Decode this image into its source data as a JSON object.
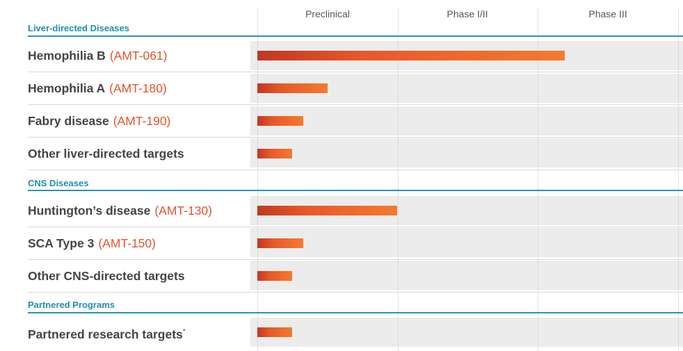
{
  "chart_data": {
    "type": "bar",
    "orientation": "horizontal",
    "phases": [
      "Preclinical",
      "Phase I/II",
      "Phase III"
    ],
    "sections": [
      {
        "title": "Liver-directed Diseases",
        "programs": [
          {
            "name": "Hemophilia B",
            "code": "(AMT-061)",
            "progress": 2.2
          },
          {
            "name": "Hemophilia A",
            "code": "(AMT-180)",
            "progress": 0.5
          },
          {
            "name": "Fabry disease",
            "code": "(AMT-190)",
            "progress": 0.33
          },
          {
            "name": "Other liver-directed targets",
            "code": "",
            "progress": 0.25
          }
        ]
      },
      {
        "title": "CNS Diseases",
        "programs": [
          {
            "name": "Huntington’s disease",
            "code": "(AMT-130)",
            "progress": 1.0
          },
          {
            "name": "SCA Type 3",
            "code": "(AMT-150)",
            "progress": 0.33
          },
          {
            "name": "Other CNS-directed targets",
            "code": "",
            "progress": 0.25
          }
        ]
      },
      {
        "title": "Partnered Programs",
        "programs": [
          {
            "name": "Partnered research targets",
            "code": "",
            "footnote_mark": "*",
            "progress": 0.25
          }
        ]
      }
    ],
    "progress_units": "phases completed (0-3 scale)"
  },
  "colors": {
    "section_accent": "#1f8fb0",
    "code_text": "#e2552b",
    "bar_start": "#c03822",
    "bar_end": "#f47a2e",
    "band": "#ececec"
  }
}
